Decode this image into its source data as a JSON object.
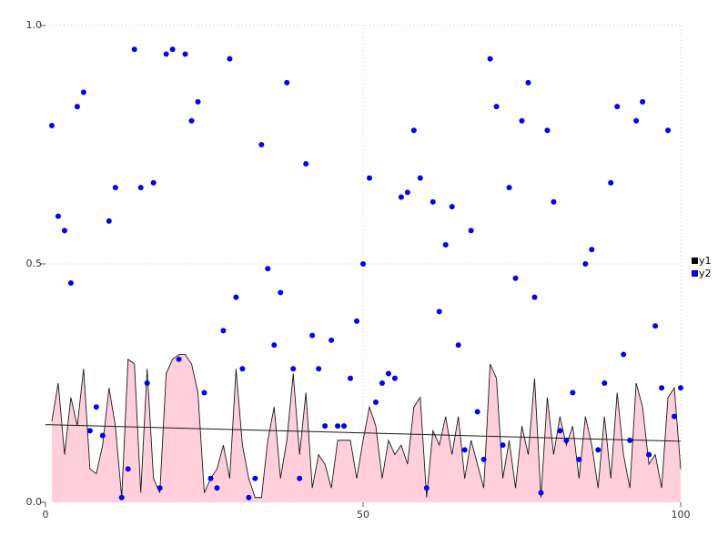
{
  "chart_data": {
    "type": "mixed",
    "title": "",
    "xlabel": "",
    "ylabel": "",
    "xlim": [
      0,
      100
    ],
    "ylim": [
      0,
      1
    ],
    "xticks": [
      "0",
      "50",
      "100"
    ],
    "xtick_values": [
      0,
      50,
      100
    ],
    "yticks": [
      "0.0",
      "0.5",
      "1.0"
    ],
    "ytick_values": [
      0,
      0.5,
      1
    ],
    "grid": "dotted",
    "grid_x_values": [
      50,
      100
    ],
    "grid_y_values": [
      0.5,
      1.0
    ],
    "x_start": 1,
    "x_step": 1,
    "legend": {
      "position": "right",
      "items": [
        {
          "label": "y1",
          "color": "#000000",
          "type": "area-line"
        },
        {
          "label": "y2",
          "color": "#0000ee",
          "type": "scatter"
        }
      ]
    },
    "series": [
      {
        "name": "y1",
        "type": "area",
        "line_color": "#1a1a1a",
        "fill_color": "#ffd0dc",
        "values": [
          0.17,
          0.25,
          0.1,
          0.22,
          0.16,
          0.28,
          0.07,
          0.06,
          0.12,
          0.24,
          0.16,
          0.01,
          0.3,
          0.29,
          0.02,
          0.28,
          0.05,
          0.02,
          0.27,
          0.3,
          0.31,
          0.31,
          0.29,
          0.23,
          0.02,
          0.05,
          0.07,
          0.12,
          0.05,
          0.28,
          0.12,
          0.05,
          0.01,
          0.01,
          0.13,
          0.2,
          0.05,
          0.13,
          0.27,
          0.1,
          0.23,
          0.03,
          0.1,
          0.08,
          0.03,
          0.13,
          0.13,
          0.13,
          0.05,
          0.13,
          0.2,
          0.16,
          0.05,
          0.13,
          0.1,
          0.12,
          0.08,
          0.2,
          0.22,
          0.01,
          0.15,
          0.12,
          0.18,
          0.1,
          0.18,
          0.05,
          0.13,
          0.08,
          0.03,
          0.29,
          0.26,
          0.05,
          0.13,
          0.03,
          0.16,
          0.1,
          0.26,
          0.01,
          0.22,
          0.1,
          0.18,
          0.12,
          0.16,
          0.05,
          0.18,
          0.12,
          0.03,
          0.18,
          0.05,
          0.23,
          0.1,
          0.03,
          0.25,
          0.2,
          0.08,
          0.1,
          0.03,
          0.22,
          0.24,
          0.07
        ]
      },
      {
        "name": "y2",
        "type": "scatter",
        "color": "#0000ee",
        "marker_radius": 3,
        "values": [
          0.79,
          0.6,
          0.57,
          0.46,
          0.83,
          0.86,
          0.15,
          0.2,
          0.14,
          0.59,
          0.66,
          0.01,
          0.07,
          0.95,
          0.66,
          0.25,
          0.67,
          0.03,
          0.94,
          0.95,
          0.3,
          0.94,
          0.8,
          0.84,
          0.23,
          0.05,
          0.03,
          0.36,
          0.93,
          0.43,
          0.28,
          0.01,
          0.05,
          0.75,
          0.49,
          0.33,
          0.44,
          0.88,
          0.28,
          0.05,
          0.71,
          0.35,
          0.28,
          0.16,
          0.34,
          0.16,
          0.16,
          0.26,
          0.38,
          0.5,
          0.68,
          0.21,
          0.25,
          0.27,
          0.26,
          0.64,
          0.65,
          0.78,
          0.68,
          0.03,
          0.63,
          0.4,
          0.54,
          0.62,
          0.33,
          0.11,
          0.57,
          0.19,
          0.09,
          0.93,
          0.83,
          0.12,
          0.66,
          0.47,
          0.8,
          0.88,
          0.43,
          0.02,
          0.78,
          0.63,
          0.15,
          0.13,
          0.23,
          0.09,
          0.5,
          0.53,
          0.11,
          0.25,
          0.67,
          0.83,
          0.31,
          0.13,
          0.8,
          0.84,
          0.1,
          0.37,
          0.24,
          0.78,
          0.18,
          0.24
        ]
      },
      {
        "name": "trend",
        "type": "line",
        "color": "#1a1a1a",
        "points": [
          [
            0,
            0.163
          ],
          [
            100,
            0.128
          ]
        ]
      }
    ]
  },
  "colors": {
    "background": "#ffffff",
    "grid": "#c8c8c8",
    "tick": "#555555",
    "scatter": "#0000ee",
    "area_fill": "#ffd0dc",
    "area_line": "#1a1a1a"
  }
}
